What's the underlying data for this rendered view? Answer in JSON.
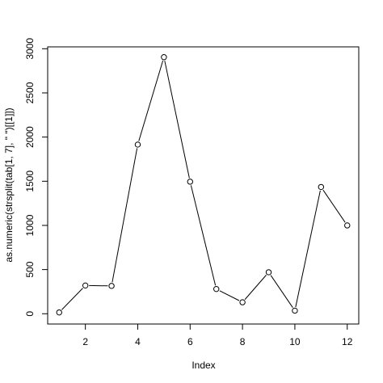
{
  "chart_data": {
    "type": "line",
    "xlabel": "Index",
    "ylabel": "as.numeric(strsplit(tab[1, 7], \" \")[[1]])",
    "x": [
      1,
      2,
      3,
      4,
      5,
      6,
      7,
      8,
      9,
      10,
      11,
      12
    ],
    "series": [
      {
        "values": [
          15,
          320,
          315,
          1915,
          2905,
          1495,
          280,
          130,
          470,
          35,
          1435,
          1000
        ]
      }
    ],
    "xlim": [
      0.56,
      12.44
    ],
    "ylim": [
      -116.2,
      3021.2
    ],
    "x_ticks": [
      "2",
      "4",
      "6",
      "8",
      "10",
      "12"
    ],
    "y_ticks": [
      "0",
      "500",
      "1000",
      "1500",
      "2000",
      "2500",
      "3000"
    ],
    "markers": "open-circle",
    "grid": false,
    "legend": "none",
    "colors": {
      "line": "#000000",
      "marker_fill": "#ffffff"
    }
  }
}
